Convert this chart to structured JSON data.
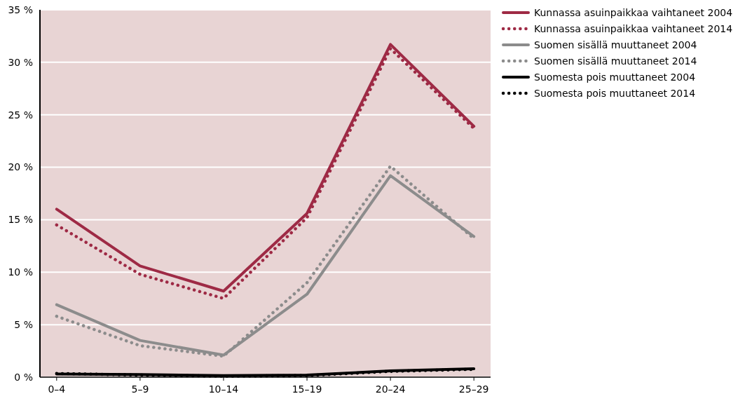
{
  "chart_data": {
    "type": "line",
    "categories": [
      "0–4",
      "5–9",
      "10–14",
      "15–19",
      "20–24",
      "25–29"
    ],
    "ylim": [
      0,
      35
    ],
    "yticks": [
      {
        "value": 0,
        "label": "0 %"
      },
      {
        "value": 5,
        "label": "5 %"
      },
      {
        "value": 10,
        "label": "10 %"
      },
      {
        "value": 15,
        "label": "15 %"
      },
      {
        "value": 20,
        "label": "20 %"
      },
      {
        "value": 25,
        "label": "25 %"
      },
      {
        "value": 30,
        "label": "30 %"
      },
      {
        "value": 35,
        "label": "35 %"
      }
    ],
    "grid": "y",
    "legend": "top right",
    "marker": "none",
    "series": [
      {
        "name": "Kunnassa asuinpaikkaa vaihtaneet 2004",
        "color": "#9e2a45",
        "line_style": "solid",
        "values": [
          16.0,
          10.6,
          8.2,
          15.6,
          31.7,
          23.9
        ]
      },
      {
        "name": "Kunnassa asuinpaikkaa vaihtaneet 2014",
        "color": "#9e2a45",
        "line_style": "dotted",
        "values": [
          14.5,
          9.8,
          7.5,
          15.2,
          31.3,
          23.7
        ]
      },
      {
        "name": "Suomen sisällä muuttaneet 2004",
        "color": "#8c8c8c",
        "line_style": "solid",
        "values": [
          6.9,
          3.5,
          2.1,
          7.9,
          19.2,
          13.4
        ]
      },
      {
        "name": "Suomen sisällä muuttaneet 2014",
        "color": "#8c8c8c",
        "line_style": "dotted",
        "values": [
          5.8,
          3.0,
          2.0,
          9.0,
          20.1,
          13.2
        ]
      },
      {
        "name": "Suomesta pois muuttaneet 2004",
        "color": "#000000",
        "line_style": "solid",
        "values": [
          0.3,
          0.25,
          0.15,
          0.2,
          0.6,
          0.8
        ]
      },
      {
        "name": "Suomesta pois muuttaneet 2014",
        "color": "#000000",
        "line_style": "dotted",
        "values": [
          0.35,
          0.2,
          0.1,
          0.15,
          0.55,
          0.75
        ]
      }
    ]
  }
}
